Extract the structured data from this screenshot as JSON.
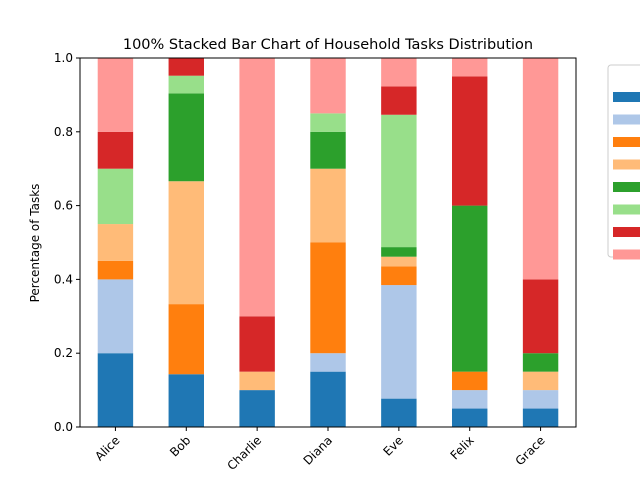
{
  "chart_data": {
    "type": "bar",
    "stacked": true,
    "normalized": true,
    "title": "100% Stacked Bar Chart of Household Tasks Distribution",
    "xlabel": "",
    "ylabel": "Percentage of Tasks",
    "ylim": [
      0,
      1.0
    ],
    "yticks": [
      "0.0",
      "0.2",
      "0.4",
      "0.6",
      "0.8",
      "1.0"
    ],
    "categories": [
      "Alice",
      "Bob",
      "Charlie",
      "Diana",
      "Eve",
      "Felix",
      "Grace"
    ],
    "legend_position": "right",
    "grid": false,
    "series": [
      {
        "name": "",
        "color": "#1f77b4",
        "values": [
          0.2,
          0.143,
          0.1,
          0.15,
          0.077,
          0.05,
          0.05
        ]
      },
      {
        "name": "",
        "color": "#aec7e8",
        "values": [
          0.2,
          0.0,
          0.0,
          0.05,
          0.308,
          0.05,
          0.05
        ]
      },
      {
        "name": "",
        "color": "#ff7f0e",
        "values": [
          0.05,
          0.19,
          0.0,
          0.3,
          0.051,
          0.05,
          0.0
        ]
      },
      {
        "name": "",
        "color": "#ffbb78",
        "values": [
          0.1,
          0.333,
          0.05,
          0.2,
          0.026,
          0.0,
          0.05
        ]
      },
      {
        "name": "",
        "color": "#2ca02c",
        "values": [
          0.0,
          0.238,
          0.0,
          0.1,
          0.026,
          0.45,
          0.05
        ]
      },
      {
        "name": "",
        "color": "#98df8a",
        "values": [
          0.15,
          0.048,
          0.0,
          0.05,
          0.359,
          0.0,
          0.0
        ]
      },
      {
        "name": "",
        "color": "#d62728",
        "values": [
          0.1,
          0.048,
          0.15,
          0.0,
          0.077,
          0.35,
          0.2
        ]
      },
      {
        "name": "",
        "color": "#ff9896",
        "values": [
          0.2,
          0.0,
          0.7,
          0.15,
          0.077,
          0.05,
          0.6
        ]
      }
    ]
  }
}
